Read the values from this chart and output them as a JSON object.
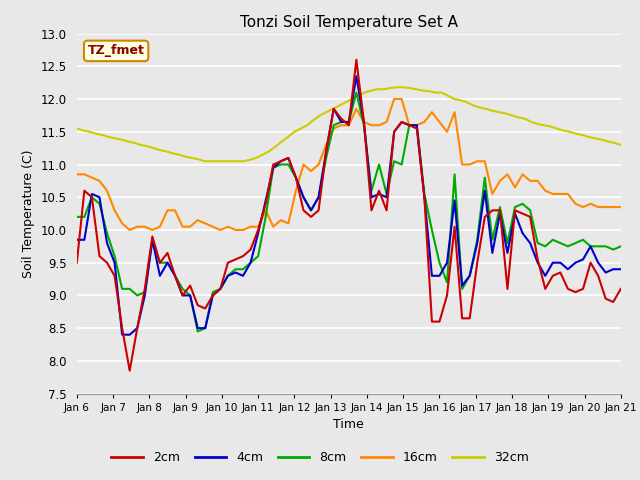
{
  "title": "Tonzi Soil Temperature Set A",
  "xlabel": "Time",
  "ylabel": "Soil Temperature (C)",
  "ylim": [
    7.5,
    13.0
  ],
  "yticks": [
    7.5,
    8.0,
    8.5,
    9.0,
    9.5,
    10.0,
    10.5,
    11.0,
    11.5,
    12.0,
    12.5,
    13.0
  ],
  "x_labels": [
    "Jan 6",
    "Jan 7",
    "Jan 8",
    "Jan 9",
    "Jan 10",
    "Jan 11",
    "Jan 12",
    "Jan 13",
    "Jan 14",
    "Jan 15",
    "Jan 16",
    "Jan 17",
    "Jan 18",
    "Jan 19",
    "Jan 20",
    "Jan 21"
  ],
  "legend_label": "TZ_fmet",
  "bg_color": "#e8e8e8",
  "colors": {
    "2cm": "#cc0000",
    "4cm": "#0000cc",
    "8cm": "#00aa00",
    "16cm": "#ff8800",
    "32cm": "#cccc00"
  },
  "series": {
    "2cm": [
      9.5,
      10.6,
      10.5,
      9.6,
      9.5,
      9.3,
      8.5,
      7.85,
      8.5,
      9.1,
      9.9,
      9.5,
      9.65,
      9.3,
      9.0,
      9.15,
      8.85,
      8.8,
      9.0,
      9.1,
      9.5,
      9.55,
      9.6,
      9.7,
      10.0,
      10.4,
      11.0,
      11.05,
      11.1,
      10.8,
      10.3,
      10.2,
      10.3,
      11.2,
      11.85,
      11.7,
      11.6,
      12.6,
      11.65,
      10.3,
      10.6,
      10.3,
      11.5,
      11.65,
      11.6,
      11.55,
      10.5,
      8.6,
      8.6,
      9.0,
      10.05,
      8.65,
      8.65,
      9.5,
      10.2,
      10.3,
      10.3,
      9.1,
      10.3,
      10.25,
      10.2,
      9.55,
      9.1,
      9.3,
      9.35,
      9.1,
      9.05,
      9.1,
      9.5,
      9.3,
      8.95,
      8.9,
      9.1
    ],
    "4cm": [
      9.85,
      9.85,
      10.55,
      10.5,
      9.8,
      9.5,
      8.4,
      8.4,
      8.5,
      9.0,
      9.85,
      9.3,
      9.5,
      9.3,
      9.0,
      9.0,
      8.5,
      8.5,
      9.0,
      9.1,
      9.3,
      9.35,
      9.3,
      9.5,
      9.95,
      10.45,
      10.95,
      11.05,
      11.1,
      10.8,
      10.5,
      10.3,
      10.5,
      11.2,
      11.85,
      11.65,
      11.65,
      12.35,
      11.65,
      10.5,
      10.55,
      10.5,
      11.5,
      11.65,
      11.6,
      11.6,
      10.5,
      9.3,
      9.3,
      9.5,
      10.45,
      9.15,
      9.3,
      9.8,
      10.6,
      9.65,
      10.25,
      9.65,
      10.25,
      9.95,
      9.8,
      9.5,
      9.3,
      9.5,
      9.5,
      9.4,
      9.5,
      9.55,
      9.75,
      9.5,
      9.35,
      9.4,
      9.4
    ],
    "8cm": [
      10.2,
      10.2,
      10.5,
      10.4,
      9.95,
      9.6,
      9.1,
      9.1,
      9.0,
      9.05,
      9.85,
      9.5,
      9.5,
      9.3,
      9.1,
      9.0,
      8.45,
      8.5,
      9.05,
      9.1,
      9.3,
      9.4,
      9.4,
      9.5,
      9.6,
      10.2,
      10.95,
      11.0,
      11.0,
      10.8,
      10.5,
      10.3,
      10.5,
      11.1,
      11.6,
      11.65,
      11.65,
      12.1,
      11.6,
      10.6,
      11.0,
      10.55,
      11.05,
      11.0,
      11.6,
      11.6,
      10.55,
      10.0,
      9.5,
      9.2,
      10.85,
      9.1,
      9.3,
      9.85,
      10.8,
      9.85,
      10.35,
      9.8,
      10.35,
      10.4,
      10.3,
      9.8,
      9.75,
      9.85,
      9.8,
      9.75,
      9.8,
      9.85,
      9.75,
      9.75,
      9.75,
      9.7,
      9.75
    ],
    "16cm": [
      10.85,
      10.85,
      10.8,
      10.75,
      10.6,
      10.3,
      10.1,
      10.0,
      10.05,
      10.05,
      10.0,
      10.05,
      10.3,
      10.3,
      10.05,
      10.05,
      10.15,
      10.1,
      10.05,
      10.0,
      10.05,
      10.0,
      10.0,
      10.05,
      10.05,
      10.3,
      10.05,
      10.15,
      10.1,
      10.6,
      11.0,
      10.9,
      11.0,
      11.3,
      11.55,
      11.6,
      11.6,
      11.85,
      11.65,
      11.6,
      11.6,
      11.65,
      12.0,
      12.0,
      11.6,
      11.6,
      11.65,
      11.8,
      11.65,
      11.5,
      11.8,
      11.0,
      11.0,
      11.05,
      11.05,
      10.55,
      10.75,
      10.85,
      10.65,
      10.85,
      10.75,
      10.75,
      10.6,
      10.55,
      10.55,
      10.55,
      10.4,
      10.35,
      10.4,
      10.35,
      10.35,
      10.35,
      10.35
    ],
    "32cm": [
      11.55,
      11.52,
      11.5,
      11.47,
      11.45,
      11.42,
      11.4,
      11.38,
      11.35,
      11.33,
      11.3,
      11.28,
      11.25,
      11.22,
      11.2,
      11.17,
      11.15,
      11.12,
      11.1,
      11.08,
      11.05,
      11.05,
      11.05,
      11.05,
      11.05,
      11.05,
      11.05,
      11.07,
      11.1,
      11.15,
      11.2,
      11.27,
      11.35,
      11.42,
      11.5,
      11.55,
      11.6,
      11.68,
      11.75,
      11.8,
      11.85,
      11.9,
      11.95,
      12.0,
      12.05,
      12.1,
      12.13,
      12.15,
      12.15,
      12.17,
      12.18,
      12.18,
      12.17,
      12.15,
      12.13,
      12.12,
      12.1,
      12.1,
      12.05,
      12.0,
      11.98,
      11.95,
      11.9,
      11.87,
      11.85,
      11.82,
      11.8,
      11.78,
      11.75,
      11.72,
      11.7,
      11.65,
      11.62,
      11.6,
      11.58,
      11.55,
      11.52,
      11.5,
      11.47,
      11.45,
      11.42,
      11.4,
      11.38,
      11.35,
      11.33,
      11.3
    ]
  }
}
